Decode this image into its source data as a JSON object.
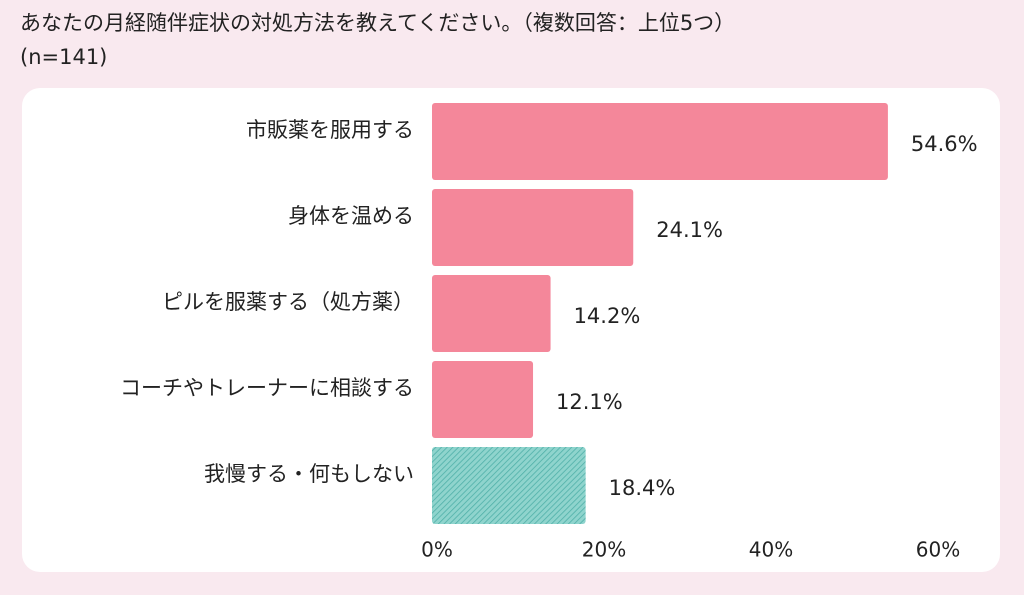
{
  "title": {
    "line1": "あなたの月経随伴症状の対処方法を教えてください。（複数回答：上位5つ）",
    "line2": "(n=141)"
  },
  "colors": {
    "background": "#f9e9ef",
    "panel": "#ffffff",
    "bar_pink": "#f4879a",
    "bar_teal": "#6fc5bd"
  },
  "chart_data": {
    "type": "bar",
    "orientation": "horizontal",
    "categories": [
      "市販薬を服用する",
      "身体を温める",
      "ピルを服薬する（処方薬）",
      "コーチやトレーナーに相談する",
      "我慢する・何もしない"
    ],
    "values": [
      54.6,
      24.1,
      14.2,
      12.1,
      18.4
    ],
    "value_labels": [
      "54.6%",
      "24.1%",
      "14.2%",
      "12.1%",
      "18.4%"
    ],
    "bar_colors": [
      "#f4879a",
      "#f4879a",
      "#f4879a",
      "#f4879a",
      "#6fc5bd"
    ],
    "bar_patterns": [
      "solid",
      "solid",
      "solid",
      "solid",
      "hatched"
    ],
    "xlim": [
      0,
      60
    ],
    "xticks": [
      0,
      20,
      40,
      60
    ],
    "xtick_labels": [
      "0%",
      "20%",
      "40%",
      "60%"
    ],
    "grid": false,
    "legend": "none"
  }
}
